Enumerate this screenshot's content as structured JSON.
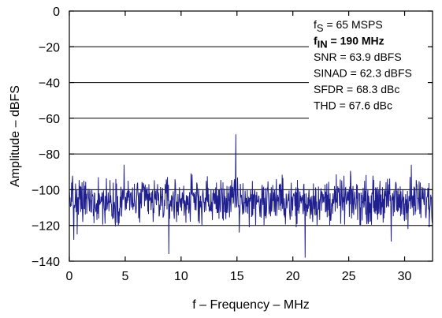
{
  "chart_data": {
    "type": "line",
    "title": "",
    "xlabel": "f – Frequency – MHz",
    "ylabel": "Amplitude – dBFS",
    "xlim": [
      0,
      32.5
    ],
    "ylim": [
      -140,
      0
    ],
    "x_ticks": [
      0,
      5,
      10,
      15,
      20,
      25,
      30
    ],
    "y_ticks": [
      0,
      -20,
      -40,
      -60,
      -80,
      -100,
      -120,
      -140
    ],
    "x_tick_labels": [
      "0",
      "5",
      "10",
      "15",
      "20",
      "25",
      "30"
    ],
    "y_tick_labels": [
      "0",
      "−20",
      "−40",
      "−60",
      "−80",
      "−100",
      "−120",
      "−140"
    ],
    "gridlines_y": [
      -20,
      -40,
      -60,
      -80,
      -100,
      -120
    ],
    "grid": "horizontal",
    "line_color": "#1f1f8f",
    "noise_floor_dbfs": -106,
    "noise_spread_dbfs": 6,
    "spikes": [
      {
        "x": 0.2,
        "y": -96
      },
      {
        "x": 0.4,
        "y": -128
      },
      {
        "x": 0.7,
        "y": -125
      },
      {
        "x": 1.2,
        "y": -118
      },
      {
        "x": 1.8,
        "y": -112
      },
      {
        "x": 2.6,
        "y": -93
      },
      {
        "x": 3.2,
        "y": -119
      },
      {
        "x": 4.9,
        "y": -86
      },
      {
        "x": 6.2,
        "y": -116
      },
      {
        "x": 7.5,
        "y": -118
      },
      {
        "x": 8.9,
        "y": -136
      },
      {
        "x": 9.6,
        "y": -118
      },
      {
        "x": 10.8,
        "y": -114
      },
      {
        "x": 11.4,
        "y": -96
      },
      {
        "x": 12.8,
        "y": -117
      },
      {
        "x": 14.9,
        "y": -69
      },
      {
        "x": 15.2,
        "y": -124
      },
      {
        "x": 16.1,
        "y": -121
      },
      {
        "x": 17.6,
        "y": -116
      },
      {
        "x": 18.5,
        "y": -99
      },
      {
        "x": 19.9,
        "y": -115
      },
      {
        "x": 20.3,
        "y": -121
      },
      {
        "x": 21.1,
        "y": -138
      },
      {
        "x": 22.4,
        "y": -117
      },
      {
        "x": 23.3,
        "y": -120
      },
      {
        "x": 24.7,
        "y": -99
      },
      {
        "x": 25.8,
        "y": -117
      },
      {
        "x": 26.9,
        "y": -113
      },
      {
        "x": 27.8,
        "y": -95
      },
      {
        "x": 28.8,
        "y": -129
      },
      {
        "x": 29.2,
        "y": -96
      },
      {
        "x": 30.3,
        "y": -122
      },
      {
        "x": 30.6,
        "y": -86
      },
      {
        "x": 31.4,
        "y": -96
      },
      {
        "x": 32.2,
        "y": -121
      }
    ],
    "annotations": [
      {
        "main": "f",
        "sub": "S",
        "rest": " = 65 MSPS",
        "bold": false
      },
      {
        "main": "f",
        "sub": "IN",
        "rest": " = 190 MHz",
        "bold": true
      },
      {
        "main": "SNR = 63.9 dBFS",
        "sub": "",
        "rest": "",
        "bold": false
      },
      {
        "main": "SINAD = 62.3 dBFS",
        "sub": "",
        "rest": "",
        "bold": false
      },
      {
        "main": "SFDR = 68.3 dBc",
        "sub": "",
        "rest": "",
        "bold": false
      },
      {
        "main": "THD = 67.6 dBc",
        "sub": "",
        "rest": "",
        "bold": false
      }
    ]
  }
}
